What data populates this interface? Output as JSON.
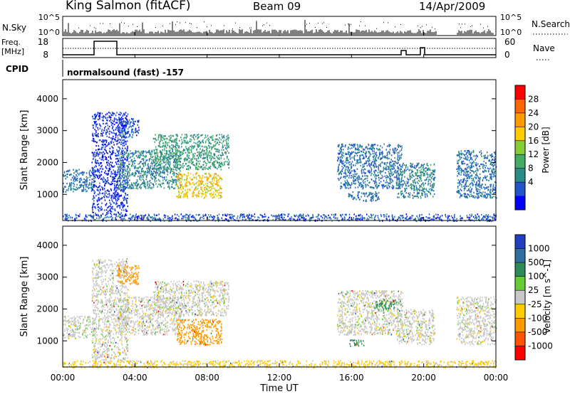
{
  "header": {
    "station": "King Salmon (fitACF)",
    "beam": "Beam 09",
    "date": "14/Apr/2009"
  },
  "summary_panels": {
    "nsky_label": "N.Sky",
    "nsky_ticks": [
      "10^5",
      "10^0"
    ],
    "nsearch_label": "N.Search",
    "nsearch_ticks": [
      "10^5",
      "10^0"
    ],
    "freq_label": "Freq.",
    "freq_unit": "[MHz]",
    "freq_ticks": [
      "18",
      "8"
    ],
    "nave_label": "Nave",
    "nave_ticks": [
      "60",
      "0"
    ],
    "cpid_label": "CPID",
    "cpid_text": "normalsound (fast) -157"
  },
  "power_colorbar": {
    "label": "Power [dB]",
    "ticks": [
      "28",
      "24",
      "20",
      "16",
      "12",
      "8",
      "4"
    ],
    "colors": [
      "#ff0000",
      "#ff6600",
      "#ff9900",
      "#ffcc00",
      "#88cc33",
      "#44aa66",
      "#2a8a8a",
      "#2255cc",
      "#0000ff"
    ]
  },
  "velocity_colorbar": {
    "label": "Velocity [m s^-1]",
    "ticks": [
      "1000",
      "500",
      "100",
      "25",
      "-25",
      "-100",
      "-500",
      "-1000"
    ],
    "colors": [
      "#2040c0",
      "#2e6fa0",
      "#2e8b57",
      "#66cc33",
      "#c8c8c8",
      "#ffcc00",
      "#ff9900",
      "#ff5500",
      "#ff0000"
    ]
  },
  "x_axis": {
    "label": "Time UT",
    "ticks": [
      "00:00",
      "04:00",
      "08:00",
      "12:00",
      "16:00",
      "20:00",
      "00:00"
    ]
  },
  "chart_data": [
    {
      "type": "heatmap",
      "title": "",
      "quantity": "Power [dB]",
      "xlabel": "Time UT",
      "ylabel": "Slant Range [km]",
      "xlim": [
        0,
        24
      ],
      "ylim": [
        180,
        4600
      ],
      "yticks": [
        1000,
        2000,
        3000,
        4000
      ],
      "ytick_labels": [
        "1000",
        "2000",
        "3000",
        "4000"
      ],
      "data_gaps_hours": [
        [
          20.7,
          21.8
        ]
      ],
      "regions": [
        {
          "t": [
            0.0,
            1.8
          ],
          "r": [
            1100,
            1800
          ],
          "value_db": 8
        },
        {
          "t": [
            1.6,
            3.6
          ],
          "r": [
            400,
            3600
          ],
          "value_db": 4
        },
        {
          "t": [
            3.0,
            6.5
          ],
          "r": [
            1200,
            2400
          ],
          "value_db": 10
        },
        {
          "t": [
            3.0,
            4.2
          ],
          "r": [
            2800,
            3400
          ],
          "value_db": 6
        },
        {
          "t": [
            5.0,
            9.2
          ],
          "r": [
            1800,
            2900
          ],
          "value_db": 12
        },
        {
          "t": [
            6.3,
            8.8
          ],
          "r": [
            900,
            1700
          ],
          "value_db": 22
        },
        {
          "t": [
            15.2,
            18.8
          ],
          "r": [
            1200,
            2600
          ],
          "value_db": 8
        },
        {
          "t": [
            15.8,
            17.5
          ],
          "r": [
            800,
            1100
          ],
          "value_db": 8
        },
        {
          "t": [
            18.5,
            20.6
          ],
          "r": [
            900,
            2000
          ],
          "value_db": 10
        },
        {
          "t": [
            21.8,
            24.0
          ],
          "r": [
            900,
            2400
          ],
          "value_db": 8
        },
        {
          "t": [
            0.0,
            24.0
          ],
          "r": [
            180,
            400
          ],
          "value_db": 6
        }
      ]
    },
    {
      "type": "heatmap",
      "title": "",
      "quantity": "Velocity [m s^-1]",
      "xlabel": "Time UT",
      "ylabel": "Slant Range [km]",
      "xlim": [
        0,
        24
      ],
      "ylim": [
        180,
        4600
      ],
      "yticks": [
        1000,
        2000,
        3000,
        4000
      ],
      "ytick_labels": [
        "1000",
        "2000",
        "3000",
        "4000"
      ],
      "data_gaps_hours": [
        [
          20.7,
          21.8
        ]
      ],
      "regions": [
        {
          "t": [
            0.0,
            1.8
          ],
          "r": [
            1100,
            1800
          ],
          "value_ms": 0
        },
        {
          "t": [
            1.6,
            3.6
          ],
          "r": [
            400,
            3600
          ],
          "value_ms": 0
        },
        {
          "t": [
            3.0,
            6.5
          ],
          "r": [
            1200,
            2400
          ],
          "value_ms": 0
        },
        {
          "t": [
            3.0,
            4.2
          ],
          "r": [
            2800,
            3400
          ],
          "value_ms": -150
        },
        {
          "t": [
            5.0,
            9.2
          ],
          "r": [
            1800,
            2900
          ],
          "value_ms": 0
        },
        {
          "t": [
            6.3,
            8.8
          ],
          "r": [
            900,
            1700
          ],
          "value_ms": -200
        },
        {
          "t": [
            15.2,
            18.8
          ],
          "r": [
            1200,
            2600
          ],
          "value_ms": 0
        },
        {
          "t": [
            17.2,
            18.6
          ],
          "r": [
            2000,
            2300
          ],
          "value_ms": 150
        },
        {
          "t": [
            15.8,
            16.7
          ],
          "r": [
            850,
            1050
          ],
          "value_ms": 150
        },
        {
          "t": [
            18.5,
            20.6
          ],
          "r": [
            900,
            2000
          ],
          "value_ms": 0
        },
        {
          "t": [
            21.8,
            24.0
          ],
          "r": [
            900,
            2400
          ],
          "value_ms": 0
        },
        {
          "t": [
            0.0,
            24.0
          ],
          "r": [
            180,
            400
          ],
          "value_ms": -40
        }
      ]
    }
  ]
}
